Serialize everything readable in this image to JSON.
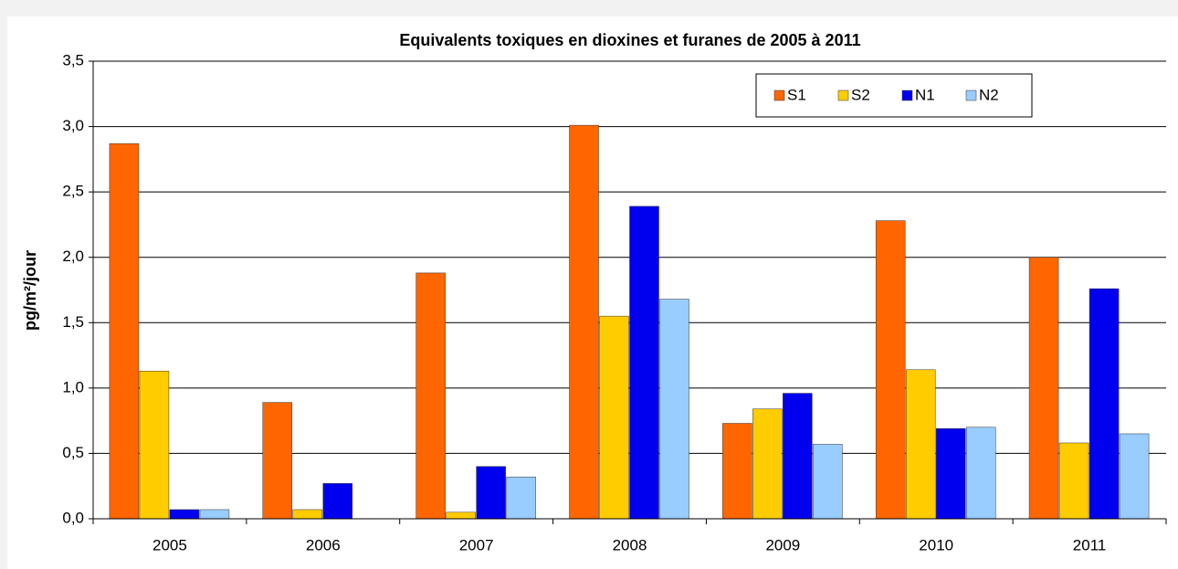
{
  "chart_data": {
    "type": "bar",
    "title": "Equivalents toxiques en dioxines et furanes de 2005 à 2011",
    "ylabel": "pg/m²/jour",
    "categories": [
      "2005",
      "2006",
      "2007",
      "2008",
      "2009",
      "2010",
      "2011"
    ],
    "series": [
      {
        "name": "S1",
        "color": "#ff6600",
        "values": [
          2.87,
          0.89,
          1.88,
          3.01,
          0.73,
          2.28,
          2.0
        ]
      },
      {
        "name": "S2",
        "color": "#ffcc00",
        "values": [
          1.13,
          0.07,
          0.05,
          1.55,
          0.84,
          1.14,
          0.58
        ]
      },
      {
        "name": "N1",
        "color": "#0000ee",
        "values": [
          0.07,
          0.27,
          0.4,
          2.39,
          0.96,
          0.69,
          1.76
        ]
      },
      {
        "name": "N2",
        "color": "#99ccff",
        "values": [
          0.07,
          null,
          0.32,
          1.68,
          0.57,
          0.7,
          0.65
        ]
      }
    ],
    "ylim": [
      0,
      3.5
    ],
    "yticks": [
      {
        "value": 0,
        "label": "0,0"
      },
      {
        "value": 0.5,
        "label": "0,5"
      },
      {
        "value": 1,
        "label": "1,0"
      },
      {
        "value": 1.5,
        "label": "1,5"
      },
      {
        "value": 2,
        "label": "2,0"
      },
      {
        "value": 2.5,
        "label": "2,5"
      },
      {
        "value": 3,
        "label": "3,0"
      },
      {
        "value": 3.5,
        "label": "3,5"
      }
    ],
    "grid": true,
    "legend": "top-right"
  }
}
